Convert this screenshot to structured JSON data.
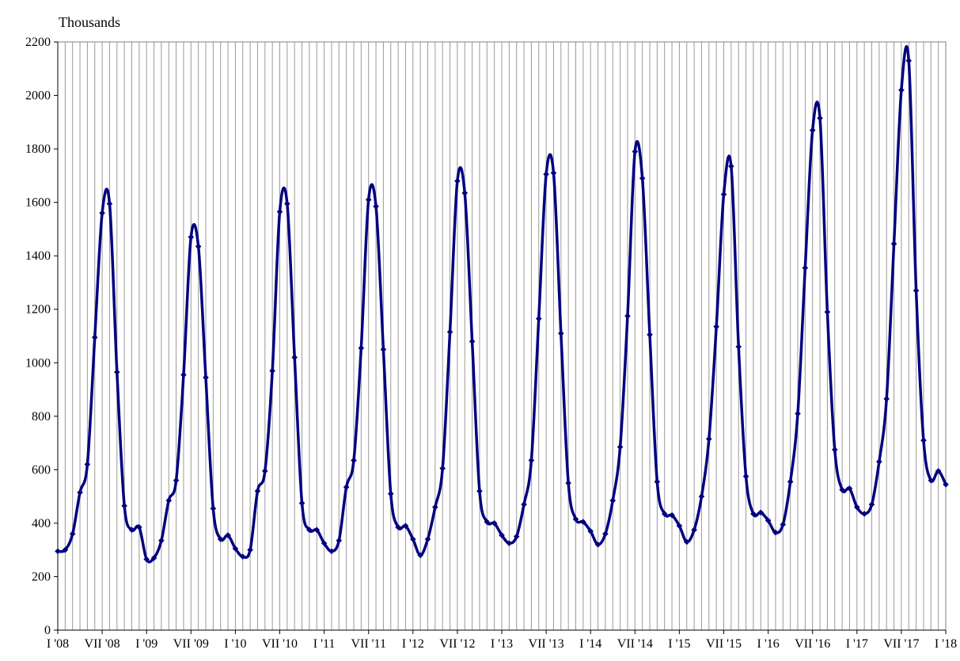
{
  "chart_data": {
    "type": "line",
    "title": "",
    "ylabel": "Thousands",
    "xlabel": "",
    "ylim": [
      0,
      2200
    ],
    "yticks": [
      0,
      200,
      400,
      600,
      800,
      1000,
      1200,
      1400,
      1600,
      1800,
      2000,
      2200
    ],
    "grid": "vertical gridline at every month",
    "legend": "none",
    "x_start": "2008-01",
    "x_end": "2018-01",
    "xtick_labels": [
      {
        "month": 0,
        "label": "I '08"
      },
      {
        "month": 6,
        "label": "VII '08"
      },
      {
        "month": 12,
        "label": "I '09"
      },
      {
        "month": 18,
        "label": "VII '09"
      },
      {
        "month": 24,
        "label": "I '10"
      },
      {
        "month": 30,
        "label": "VII '10"
      },
      {
        "month": 36,
        "label": "I '11"
      },
      {
        "month": 42,
        "label": "VII '11"
      },
      {
        "month": 48,
        "label": "I '12"
      },
      {
        "month": 54,
        "label": "VII '12"
      },
      {
        "month": 60,
        "label": "I '13"
      },
      {
        "month": 66,
        "label": "VII '13"
      },
      {
        "month": 72,
        "label": "I '14"
      },
      {
        "month": 78,
        "label": "VII '14"
      },
      {
        "month": 84,
        "label": "I '15"
      },
      {
        "month": 90,
        "label": "VII '15"
      },
      {
        "month": 96,
        "label": "I '16"
      },
      {
        "month": 102,
        "label": "VII '16"
      },
      {
        "month": 108,
        "label": "I '17"
      },
      {
        "month": 114,
        "label": "VII '17"
      },
      {
        "month": 120,
        "label": "I '18"
      }
    ],
    "series": [
      {
        "color": "#000080",
        "values": [
          295,
          300,
          360,
          515,
          620,
          1095,
          1560,
          1595,
          965,
          465,
          375,
          385,
          265,
          270,
          335,
          485,
          560,
          955,
          1470,
          1435,
          945,
          455,
          340,
          355,
          305,
          275,
          300,
          520,
          595,
          970,
          1565,
          1595,
          1020,
          475,
          375,
          375,
          325,
          295,
          335,
          535,
          635,
          1055,
          1610,
          1585,
          1050,
          510,
          385,
          390,
          340,
          280,
          340,
          460,
          605,
          1115,
          1680,
          1635,
          1080,
          520,
          405,
          400,
          355,
          325,
          350,
          470,
          635,
          1165,
          1705,
          1710,
          1110,
          550,
          415,
          405,
          370,
          320,
          360,
          485,
          685,
          1175,
          1790,
          1690,
          1105,
          555,
          435,
          430,
          390,
          330,
          375,
          500,
          715,
          1135,
          1630,
          1735,
          1060,
          575,
          435,
          440,
          410,
          365,
          395,
          555,
          810,
          1355,
          1870,
          1915,
          1190,
          675,
          525,
          530,
          460,
          435,
          470,
          630,
          865,
          1445,
          2020,
          2130,
          1270,
          710,
          560,
          595,
          545
        ]
      }
    ]
  }
}
